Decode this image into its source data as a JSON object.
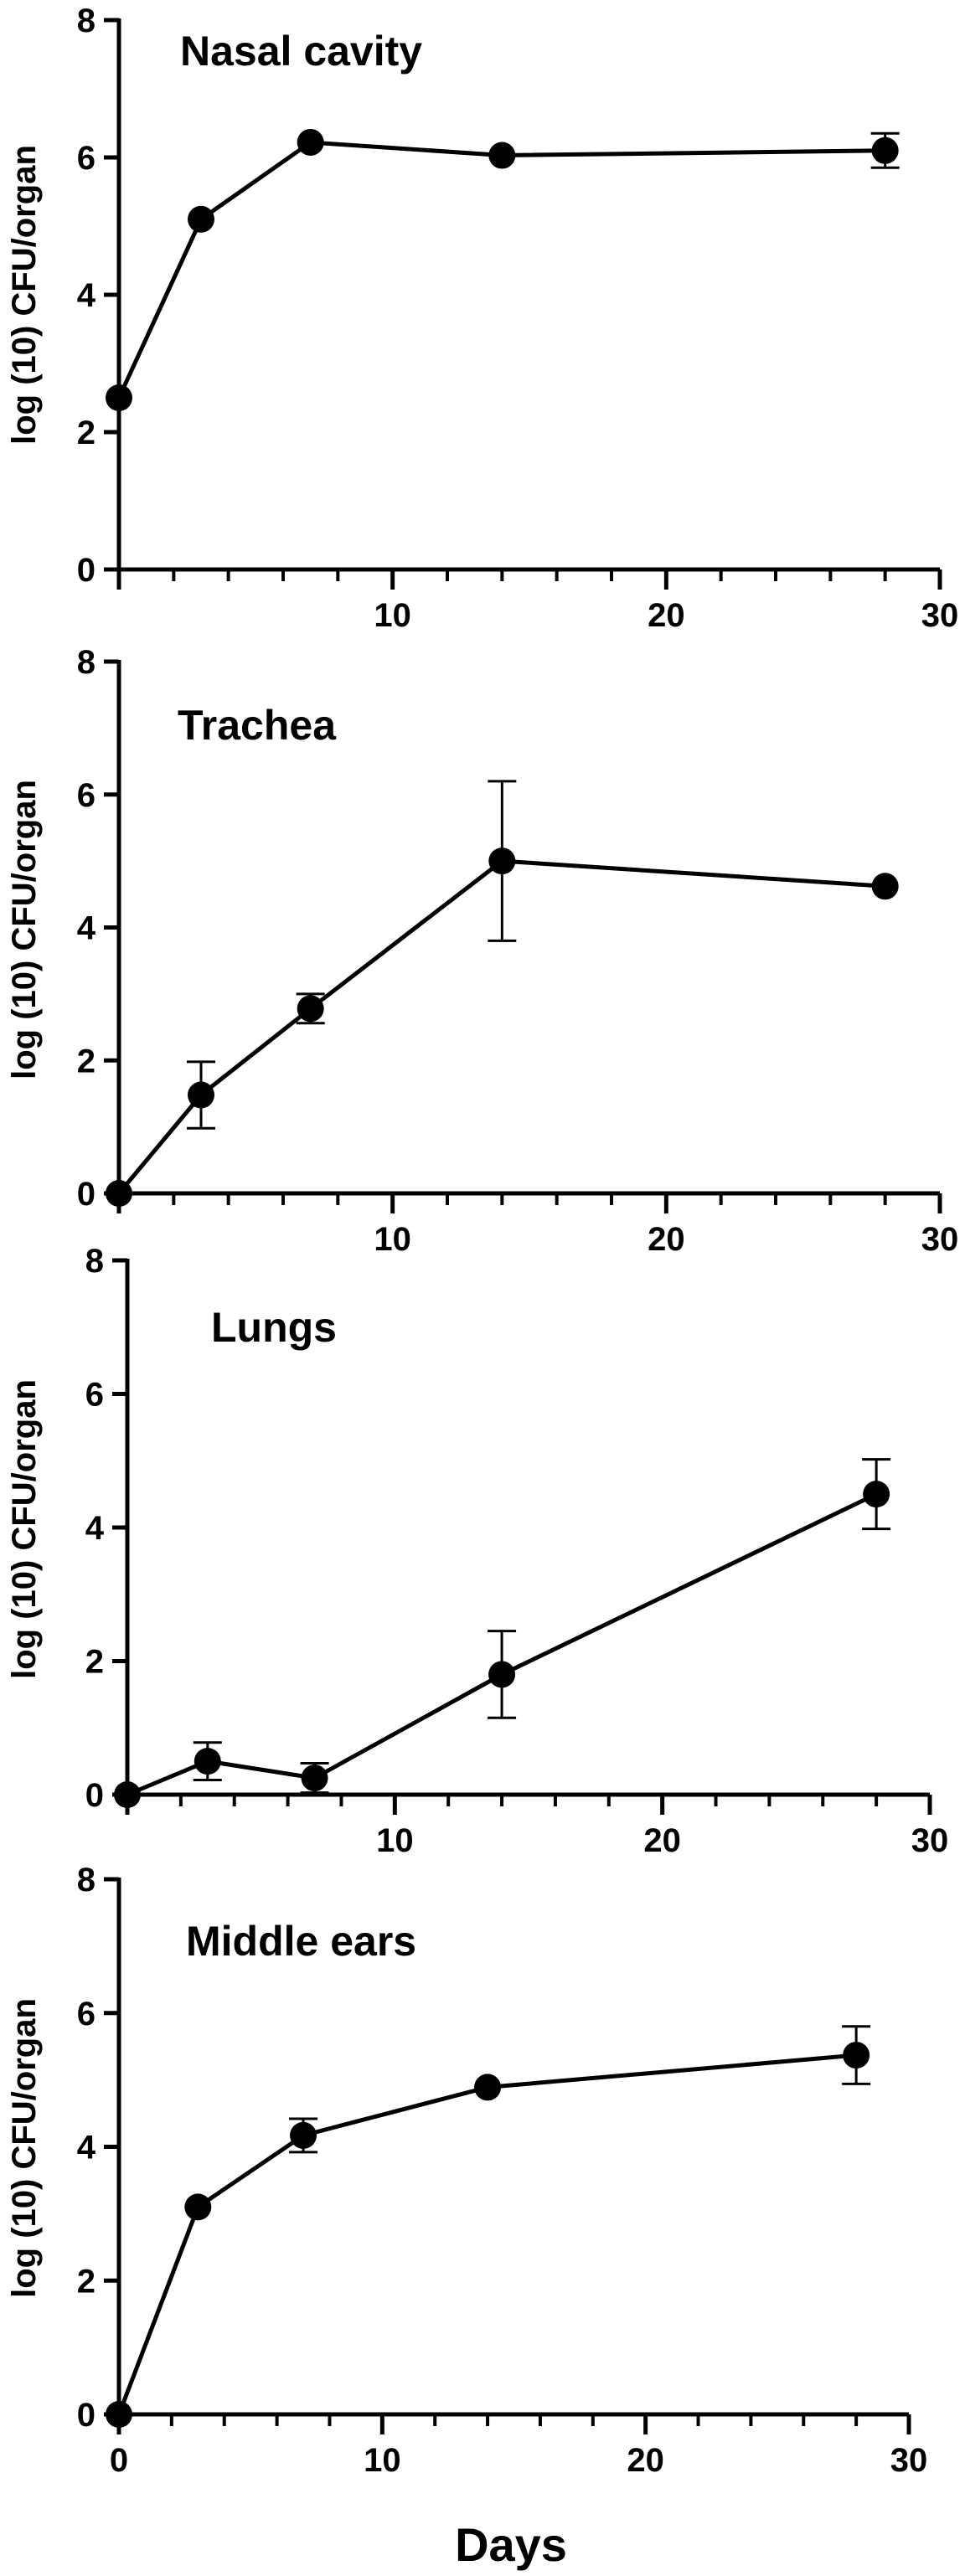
{
  "colors": {
    "ink": "#000000",
    "background": "#ffffff"
  },
  "xlabel": "Days",
  "chart_data": [
    {
      "type": "line",
      "title": "Nasal cavity",
      "ylabel": "log (10) CFU/organ",
      "xlim": [
        0,
        30
      ],
      "ylim": [
        0,
        8
      ],
      "x_ticks": [
        0,
        10,
        20,
        30
      ],
      "x_tick_labels": [
        "",
        "10",
        "20",
        "30"
      ],
      "y_ticks": [
        0,
        2,
        4,
        6,
        8
      ],
      "y_tick_labels": [
        "0",
        "2",
        "4",
        "6",
        "8"
      ],
      "series": [
        {
          "x": [
            0,
            3,
            7,
            14,
            28
          ],
          "y": [
            2.5,
            5.1,
            6.22,
            6.03,
            6.1
          ],
          "err": [
            0,
            0,
            0,
            0,
            0.25
          ]
        }
      ]
    },
    {
      "type": "line",
      "title": "Trachea",
      "ylabel": "log (10) CFU/organ",
      "xlim": [
        0,
        30
      ],
      "ylim": [
        0,
        8
      ],
      "x_ticks": [
        0,
        10,
        20,
        30
      ],
      "x_tick_labels": [
        "",
        "10",
        "20",
        "30"
      ],
      "y_ticks": [
        0,
        2,
        4,
        6,
        8
      ],
      "y_tick_labels": [
        "0",
        "2",
        "4",
        "6",
        "8"
      ],
      "series": [
        {
          "x": [
            0,
            3,
            7,
            14,
            28
          ],
          "y": [
            0,
            1.48,
            2.78,
            5.0,
            4.62
          ],
          "err": [
            0,
            0.5,
            0.22,
            1.2,
            0
          ]
        }
      ]
    },
    {
      "type": "line",
      "title": "Lungs",
      "ylabel": "log (10) CFU/organ",
      "xlim": [
        0,
        30
      ],
      "ylim": [
        0,
        8
      ],
      "x_ticks": [
        0,
        10,
        20,
        30
      ],
      "x_tick_labels": [
        "",
        "10",
        "20",
        "30"
      ],
      "y_ticks": [
        0,
        2,
        4,
        6,
        8
      ],
      "y_tick_labels": [
        "0",
        "2",
        "4",
        "6",
        "8"
      ],
      "series": [
        {
          "x": [
            0,
            3,
            7,
            14,
            28
          ],
          "y": [
            0,
            0.5,
            0.25,
            1.8,
            4.5
          ],
          "err": [
            0,
            0.28,
            0.22,
            0.65,
            0.52
          ]
        }
      ]
    },
    {
      "type": "line",
      "title": "Middle ears",
      "ylabel": "log (10) CFU/organ",
      "xlim": [
        0,
        30
      ],
      "ylim": [
        0,
        8
      ],
      "x_ticks": [
        0,
        10,
        20,
        30
      ],
      "x_tick_labels": [
        "0",
        "10",
        "20",
        "30"
      ],
      "y_ticks": [
        0,
        2,
        4,
        6,
        8
      ],
      "y_tick_labels": [
        "0",
        "2",
        "4",
        "6",
        "8"
      ],
      "series": [
        {
          "x": [
            0,
            3,
            7,
            14,
            28
          ],
          "y": [
            0,
            3.1,
            4.17,
            4.89,
            5.37
          ],
          "err": [
            0,
            0,
            0.25,
            0,
            0.43
          ]
        }
      ]
    }
  ]
}
